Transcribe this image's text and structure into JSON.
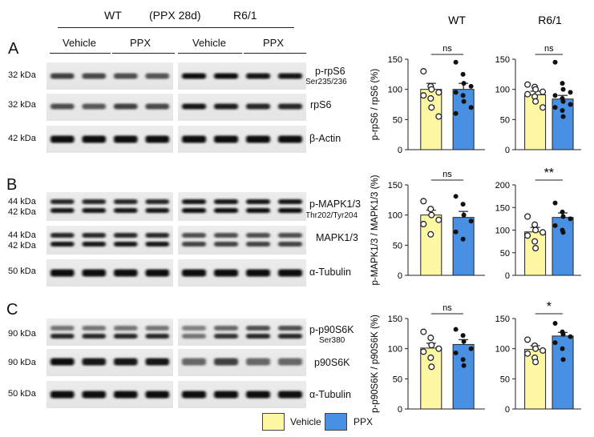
{
  "header": {
    "wt": "WT",
    "ppx28d": "(PPX 28d)",
    "r61": "R6/1",
    "groups": [
      "Vehicle",
      "PPX",
      "Vehicle",
      "PPX"
    ]
  },
  "panels": [
    {
      "letter": "A",
      "blots": [
        {
          "kda": "32 kDa",
          "kda2": "",
          "label": "p-rpS6",
          "sublabel": "Ser235/236"
        },
        {
          "kda": "32 kDa",
          "kda2": "",
          "label": "rpS6",
          "sublabel": ""
        },
        {
          "kda": "42 kDa",
          "kda2": "",
          "label": "β-Actin",
          "sublabel": ""
        }
      ]
    },
    {
      "letter": "B",
      "blots": [
        {
          "kda": "44 kDa",
          "kda2": "42 kDa",
          "label": "p-MAPK1/3",
          "sublabel": "Thr202/Tyr204"
        },
        {
          "kda": "44 kDa",
          "kda2": "42 kDa",
          "label": "MAPK1/3",
          "sublabel": ""
        },
        {
          "kda": "50 kDa",
          "kda2": "",
          "label": "α-Tubulin",
          "sublabel": ""
        }
      ]
    },
    {
      "letter": "C",
      "blots": [
        {
          "kda": "90 kDa",
          "kda2": "",
          "label": "p-p90S6K",
          "sublabel": "Ser380"
        },
        {
          "kda": "90 kDa",
          "kda2": "",
          "label": "p90S6K",
          "sublabel": ""
        },
        {
          "kda": "50 kDa",
          "kda2": "",
          "label": "α-Tubulin",
          "sublabel": ""
        }
      ]
    }
  ],
  "colors": {
    "vehicle": "#fdf6a3",
    "ppx": "#4a90e2"
  },
  "legend": {
    "vehicle": "Vehicle",
    "ppx": "PPX"
  },
  "chart_data": [
    {
      "type": "bar",
      "column": "WT",
      "col_title": "WT",
      "ylabel": "p-rpS6 / rpS6 (%)",
      "ylim": [
        0,
        150
      ],
      "yticks": [
        0,
        50,
        100,
        150
      ],
      "categories": [
        "Vehicle",
        "PPX"
      ],
      "values": [
        100,
        100
      ],
      "errors": [
        10,
        10
      ],
      "significance": "ns",
      "points": [
        [
          130,
          105,
          100,
          95,
          90,
          85,
          70,
          55
        ],
        [
          145,
          125,
          110,
          105,
          95,
          90,
          80,
          70,
          60
        ]
      ]
    },
    {
      "type": "bar",
      "column": "R6/1",
      "col_title": "R6/1",
      "ylabel": "",
      "ylim": [
        0,
        150
      ],
      "yticks": [
        0,
        50,
        100,
        150
      ],
      "categories": [
        "Vehicle",
        "PPX"
      ],
      "values": [
        91,
        84
      ],
      "errors": [
        6,
        6
      ],
      "significance": "ns",
      "points": [
        [
          108,
          104,
          100,
          96,
          92,
          88,
          80,
          70
        ],
        [
          145,
          110,
          100,
          95,
          90,
          85,
          80,
          75,
          70,
          65,
          55
        ]
      ]
    },
    {
      "type": "bar",
      "column": "WT",
      "col_title": "",
      "ylabel": "p-MAPK1/3 / MAPK1/3 (%)",
      "ylim": [
        0,
        150
      ],
      "yticks": [
        0,
        50,
        100,
        150
      ],
      "categories": [
        "Vehicle",
        "PPX"
      ],
      "values": [
        100,
        96
      ],
      "errors": [
        8,
        10
      ],
      "significance": "ns",
      "points": [
        [
          123,
          110,
          100,
          92,
          85,
          68
        ],
        [
          131,
          118,
          100,
          90,
          72,
          60
        ]
      ]
    },
    {
      "type": "bar",
      "column": "R6/1",
      "col_title": "",
      "ylabel": "",
      "ylim": [
        0,
        200
      ],
      "yticks": [
        0,
        50,
        100,
        150,
        200
      ],
      "categories": [
        "Vehicle",
        "PPX"
      ],
      "values": [
        96,
        128
      ],
      "errors": [
        10,
        10
      ],
      "significance": "**",
      "points": [
        [
          130,
          112,
          100,
          95,
          88,
          75,
          60
        ],
        [
          160,
          140,
          130,
          125,
          110,
          100,
          95
        ]
      ]
    },
    {
      "type": "bar",
      "column": "WT",
      "col_title": "",
      "ylabel": "p-p90S6K / p90S6K (%)",
      "ylim": [
        0,
        150
      ],
      "yticks": [
        0,
        50,
        100,
        150
      ],
      "categories": [
        "Vehicle",
        "PPX"
      ],
      "values": [
        101,
        107
      ],
      "errors": [
        8,
        8
      ],
      "significance": "ns",
      "points": [
        [
          128,
          118,
          106,
          100,
          95,
          85,
          70
        ],
        [
          132,
          122,
          112,
          100,
          93,
          82,
          72
        ]
      ]
    },
    {
      "type": "bar",
      "column": "R6/1",
      "col_title": "",
      "ylabel": "",
      "ylim": [
        0,
        150
      ],
      "yticks": [
        0,
        50,
        100,
        150
      ],
      "categories": [
        "Vehicle",
        "PPX"
      ],
      "values": [
        99,
        121
      ],
      "errors": [
        6,
        6
      ],
      "significance": "*",
      "points": [
        [
          115,
          105,
          100,
          97,
          92,
          85,
          78
        ],
        [
          142,
          128,
          124,
          120,
          110,
          100,
          82
        ]
      ]
    }
  ]
}
